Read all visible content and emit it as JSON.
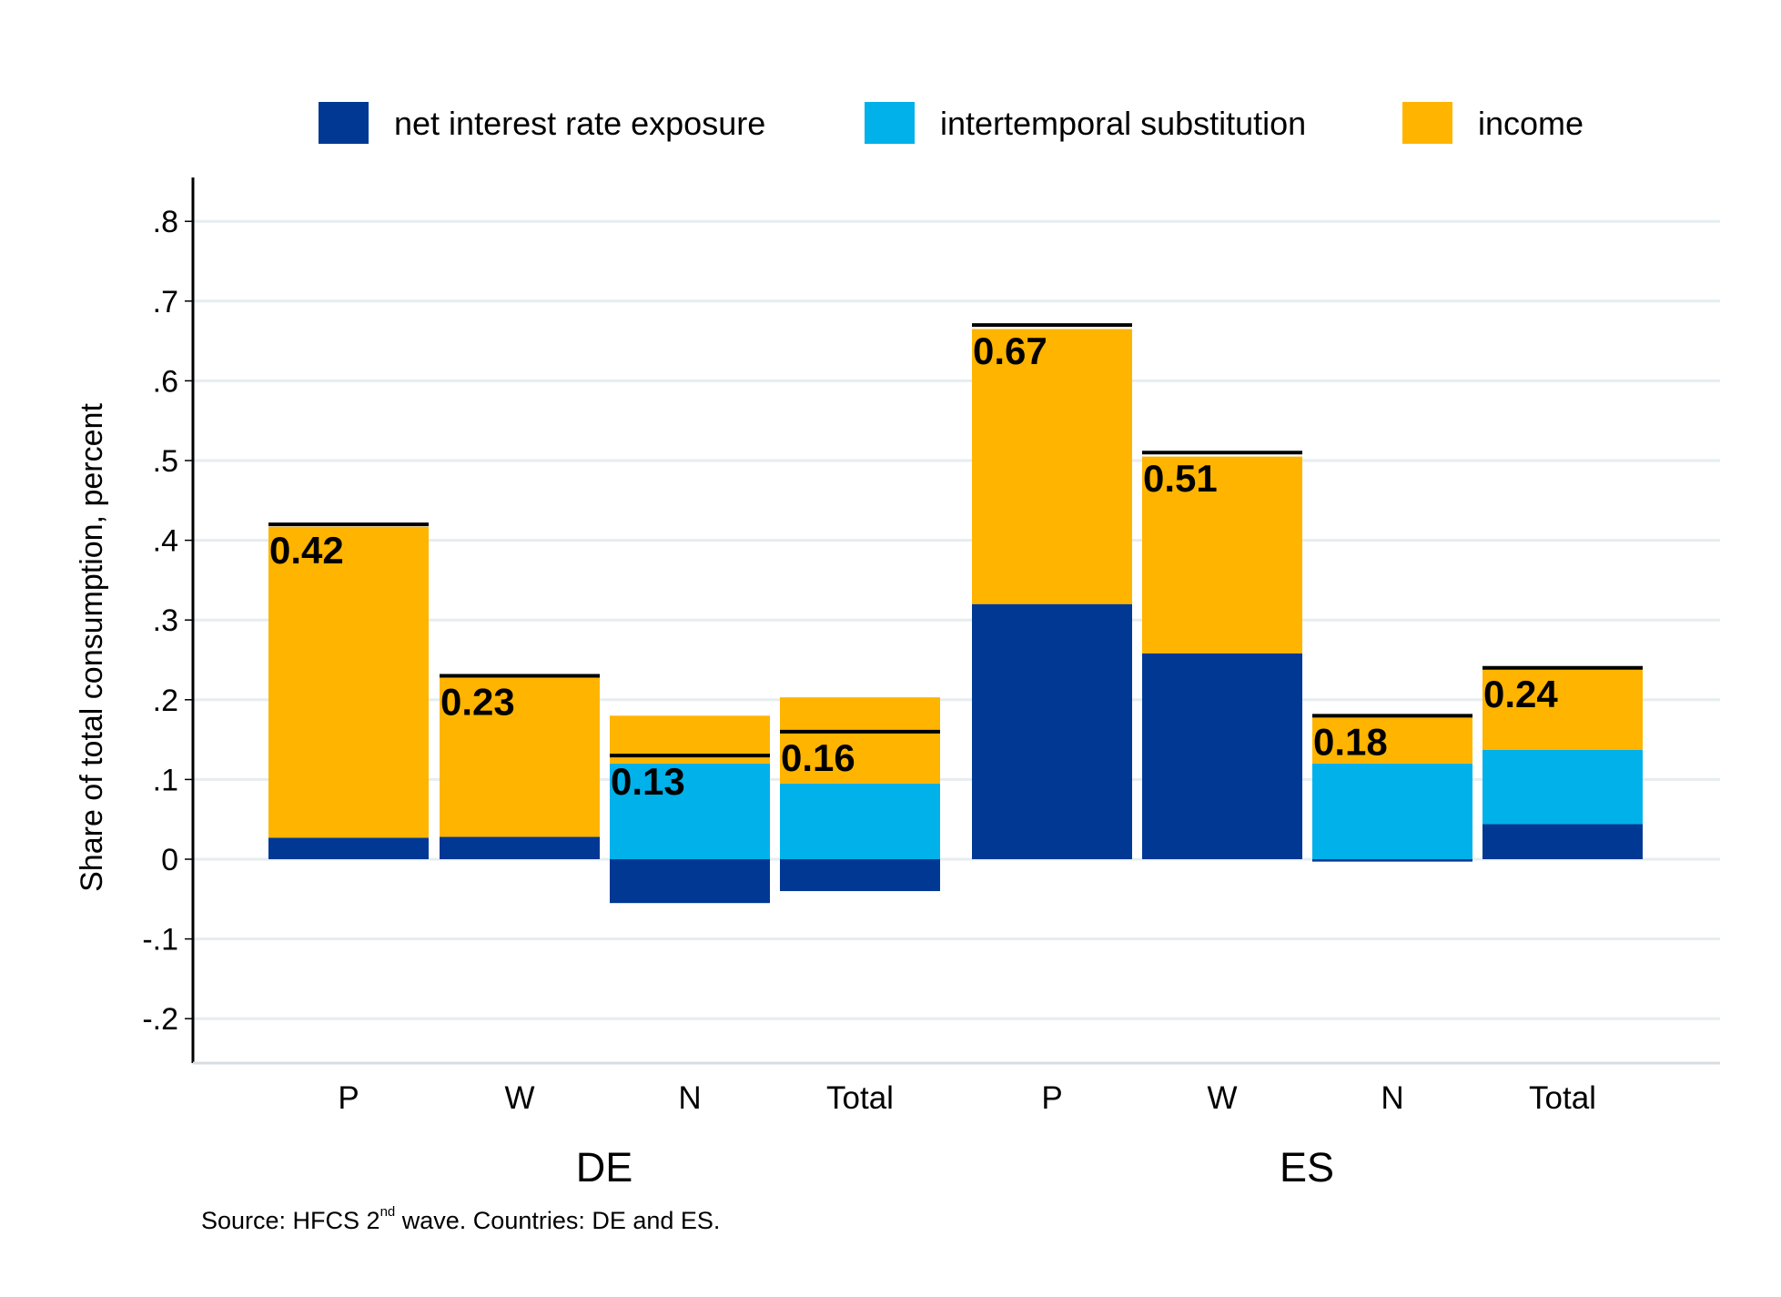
{
  "chart_data": {
    "type": "bar",
    "stacked": true,
    "title": "",
    "ylabel": "Share of total consumption, percent",
    "xlabel": "",
    "ylim": [
      -0.25,
      0.85
    ],
    "yticks": [
      {
        "value": 0.8,
        "label": ".8"
      },
      {
        "value": 0.7,
        "label": ".7"
      },
      {
        "value": 0.6,
        "label": ".6"
      },
      {
        "value": 0.5,
        "label": ".5"
      },
      {
        "value": 0.4,
        "label": ".4"
      },
      {
        "value": 0.3,
        "label": ".3"
      },
      {
        "value": 0.2,
        "label": ".2"
      },
      {
        "value": 0.1,
        "label": ".1"
      },
      {
        "value": 0,
        "label": "0"
      },
      {
        "value": -0.1,
        "label": "-.1"
      },
      {
        "value": -0.2,
        "label": "-.2"
      }
    ],
    "grid": true,
    "legend_position": "top",
    "groups": [
      {
        "name": "DE",
        "categories": [
          "P",
          "W",
          "N",
          "Total"
        ]
      },
      {
        "name": "ES",
        "categories": [
          "P",
          "W",
          "N",
          "Total"
        ]
      }
    ],
    "categories": [
      "P",
      "W",
      "N",
      "Total",
      "P",
      "W",
      "N",
      "Total"
    ],
    "series": [
      {
        "name": "net interest rate exposure",
        "color": "#003894",
        "values": [
          0.027,
          0.028,
          -0.055,
          -0.04,
          0.32,
          0.258,
          -0.003,
          0.044
        ]
      },
      {
        "name": "intertemporal substitution",
        "color": "#00b1ea",
        "values": [
          0.0,
          0.0,
          0.12,
          0.095,
          0.0,
          0.0,
          0.12,
          0.093
        ]
      },
      {
        "name": "income",
        "color": "#ffb400",
        "values": [
          0.39,
          0.2,
          0.06,
          0.108,
          0.345,
          0.247,
          0.06,
          0.104
        ]
      }
    ],
    "totals": [
      0.42,
      0.23,
      0.13,
      0.16,
      0.67,
      0.51,
      0.18,
      0.24
    ],
    "total_labels": [
      "0.42",
      "0.23",
      "0.13",
      "0.16",
      "0.67",
      "0.51",
      "0.18",
      "0.24"
    ]
  },
  "source": {
    "prefix": "Source: HFCS 2",
    "superscript": "nd",
    "suffix": " wave. Countries: DE and ES."
  }
}
